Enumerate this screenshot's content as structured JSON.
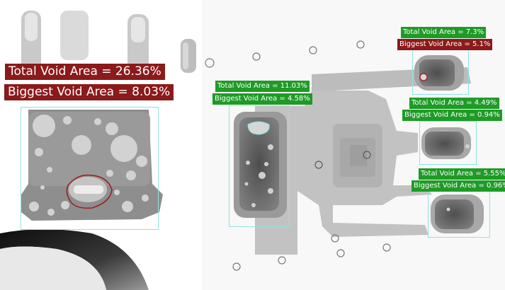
{
  "colors": {
    "fail": "#8b1a1a",
    "pass": "#1e9b26",
    "box": "#8fe3e3",
    "void_outline": "#9b1c1c"
  },
  "inspections": [
    {
      "component": "left",
      "status": "fail",
      "total_label": "Total Void Area =  26.36%",
      "biggest_label": "Biggest Void Area =  8.03%"
    },
    {
      "component": "center",
      "status": "pass",
      "total_label": "Total Void Area =  11.03%",
      "biggest_label": "Biggest Void Area =  4.58%"
    },
    {
      "component": "top-right",
      "status": "pass",
      "biggest_status": "fail",
      "total_label": "Total Void Area =  7.3%",
      "biggest_label": "Biggest Void Area =  5.1%"
    },
    {
      "component": "mid-right",
      "status": "pass",
      "total_label": "Total Void Area =  4.49%",
      "biggest_label": "Biggest Void Area =  0.94%"
    },
    {
      "component": "bottom-right",
      "status": "pass",
      "total_label": "Total Void Area =  5.55%",
      "biggest_label": "Biggest Void Area =  0.96%"
    }
  ]
}
